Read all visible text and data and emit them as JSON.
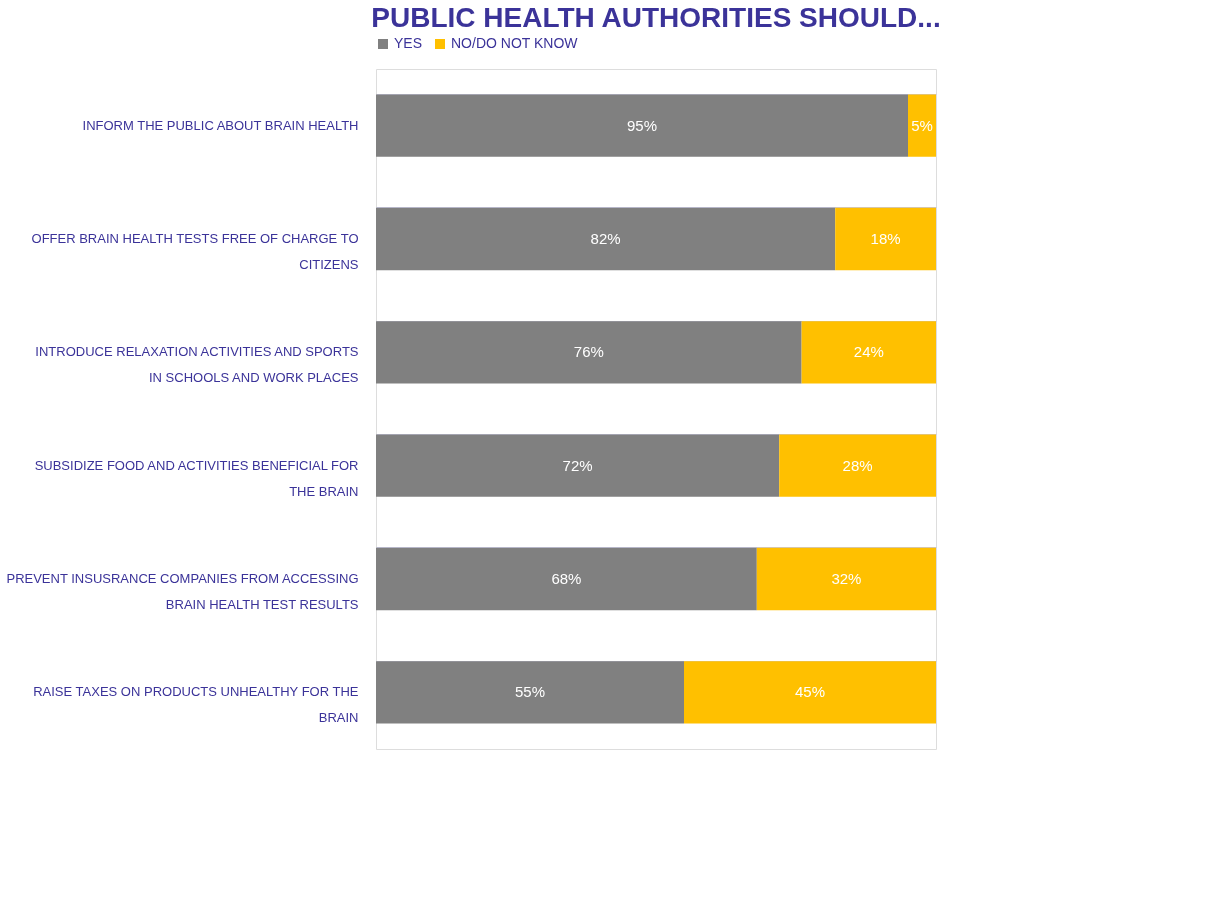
{
  "chart_data": {
    "type": "bar",
    "orientation": "horizontal",
    "stacked": true,
    "title": "PUBLIC HEALTH AUTHORITIES SHOULD...",
    "categories": [
      "INFORM THE PUBLIC ABOUT BRAIN HEALTH",
      "OFFER BRAIN HEALTH TESTS FREE OF CHARGE TO CITIZENS",
      "INTRODUCE RELAXATION ACTIVITIES AND SPORTS IN SCHOOLS AND WORK PLACES",
      "SUBSIDIZE FOOD AND ACTIVITIES BENEFICIAL FOR THE BRAIN",
      "PREVENT INSUSRANCE COMPANIES FROM ACCESSING BRAIN HEALTH TEST RESULTS",
      "RAISE TAXES ON PRODUCTS UNHEALTHY FOR THE BRAIN"
    ],
    "series": [
      {
        "name": "YES",
        "color": "#808080",
        "values": [
          95,
          82,
          76,
          72,
          68,
          55
        ],
        "value_labels": [
          "95%",
          "82%",
          "76%",
          "72%",
          "68%",
          "55%"
        ]
      },
      {
        "name": "NO/DO NOT KNOW",
        "color": "#ffc000",
        "values": [
          5,
          18,
          24,
          28,
          32,
          45
        ],
        "value_labels": [
          "5%",
          "18%",
          "24%",
          "28%",
          "32%",
          "45%"
        ]
      }
    ],
    "xlim": [
      0,
      100
    ],
    "tick_labels": "y",
    "grid": "y",
    "legend": "top"
  }
}
